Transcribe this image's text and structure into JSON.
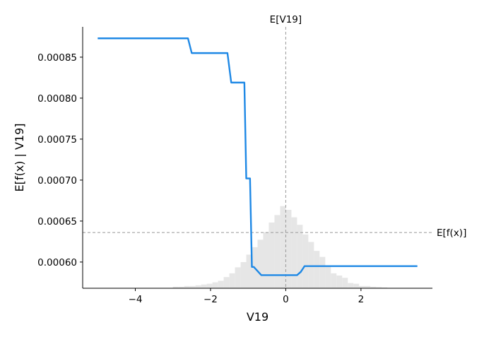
{
  "chart_data": {
    "type": "line",
    "xlabel": "V19",
    "ylabel": "E[f(x) | V19]",
    "xlim": [
      -5.4,
      3.9
    ],
    "ylim": [
      0.000568,
      0.000887
    ],
    "x_ticks": [
      -4,
      -2,
      0,
      2
    ],
    "x_tick_labels": [
      "−4",
      "−2",
      "0",
      "2"
    ],
    "y_ticks": [
      0.0006,
      0.00065,
      0.0007,
      0.00075,
      0.0008,
      0.00085
    ],
    "y_tick_labels": [
      "0.00060",
      "0.00065",
      "0.00070",
      "0.00075",
      "0.00080",
      "0.00085"
    ],
    "series": [
      {
        "color": "#1e88e5",
        "x": [
          -5.0,
          -2.6,
          -2.5,
          -1.55,
          -1.45,
          -1.1,
          -1.05,
          -0.95,
          -0.9,
          -0.85,
          -0.65,
          -0.6,
          0.3,
          0.4,
          0.5,
          3.5
        ],
        "y": [
          0.000873,
          0.000873,
          0.000855,
          0.000855,
          0.000819,
          0.000819,
          0.000702,
          0.000702,
          0.000594,
          0.000594,
          0.000584,
          0.000584,
          0.000584,
          0.000588,
          0.000595,
          0.000595
        ]
      }
    ],
    "histogram": {
      "color": "#e6e6e6",
      "bin_width": 0.15,
      "bin_left_edges": [
        -3.0,
        -2.85,
        -2.7,
        -2.55,
        -2.4,
        -2.25,
        -2.1,
        -1.95,
        -1.8,
        -1.65,
        -1.5,
        -1.35,
        -1.2,
        -1.05,
        -0.9,
        -0.75,
        -0.6,
        -0.45,
        -0.3,
        -0.15,
        0.0,
        0.15,
        0.3,
        0.45,
        0.6,
        0.75,
        0.9,
        1.05,
        1.2,
        1.35,
        1.5,
        1.65,
        1.8,
        1.95,
        2.1,
        2.25,
        2.4,
        2.55
      ],
      "counts": [
        0.2,
        0.2,
        0.3,
        0.3,
        0.4,
        0.5,
        0.6,
        0.8,
        1.0,
        1.5,
        2.0,
        2.8,
        3.5,
        4.5,
        5.5,
        6.5,
        7.5,
        8.8,
        9.8,
        11.0,
        10.5,
        9.5,
        8.5,
        7.2,
        6.2,
        5.0,
        4.2,
        3.0,
        2.0,
        1.7,
        1.4,
        0.7,
        0.6,
        0.3,
        0.3,
        0.2,
        0.15,
        0.1
      ],
      "scale_max": 35
    },
    "reference_lines": [
      {
        "orientation": "vertical",
        "value": 0.0,
        "label": "E[V19]",
        "style": "dashed",
        "color": "#999999"
      },
      {
        "orientation": "horizontal",
        "value": 0.000636,
        "label": "E[f(x)]",
        "style": "dashed",
        "color": "#999999"
      }
    ],
    "grid": false
  }
}
